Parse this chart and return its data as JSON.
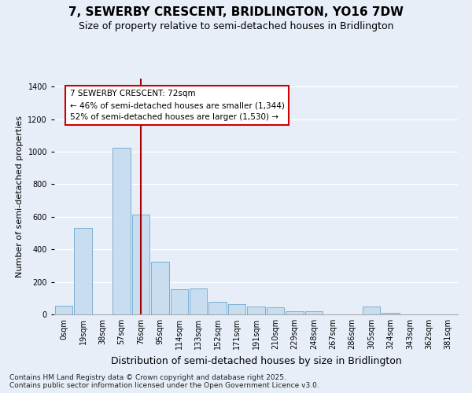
{
  "title_line1": "7, SEWERBY CRESCENT, BRIDLINGTON, YO16 7DW",
  "title_line2": "Size of property relative to semi-detached houses in Bridlington",
  "xlabel": "Distribution of semi-detached houses by size in Bridlington",
  "ylabel": "Number of semi-detached properties",
  "bin_labels": [
    "0sqm",
    "19sqm",
    "38sqm",
    "57sqm",
    "76sqm",
    "95sqm",
    "114sqm",
    "133sqm",
    "152sqm",
    "171sqm",
    "191sqm",
    "210sqm",
    "229sqm",
    "248sqm",
    "267sqm",
    "286sqm",
    "305sqm",
    "324sqm",
    "343sqm",
    "362sqm",
    "381sqm"
  ],
  "bar_values": [
    55,
    530,
    0,
    1025,
    615,
    325,
    155,
    160,
    75,
    65,
    50,
    45,
    20,
    20,
    0,
    0,
    50,
    10,
    0,
    0,
    0
  ],
  "bar_color": "#c8ddf0",
  "bar_edge_color": "#7bafd4",
  "vline_x": 4.0,
  "vline_color": "#aa0000",
  "annotation_text": "7 SEWERBY CRESCENT: 72sqm\n← 46% of semi-detached houses are smaller (1,344)\n52% of semi-detached houses are larger (1,530) →",
  "annotation_box_facecolor": "#ffffff",
  "annotation_box_edgecolor": "#cc0000",
  "ylim": [
    0,
    1450
  ],
  "yticks": [
    0,
    200,
    400,
    600,
    800,
    1000,
    1200,
    1400
  ],
  "bg_color": "#e8eef8",
  "plot_bg_color": "#e8eef8",
  "footer_text": "Contains HM Land Registry data © Crown copyright and database right 2025.\nContains public sector information licensed under the Open Government Licence v3.0.",
  "title_fontsize": 11,
  "subtitle_fontsize": 9,
  "tick_fontsize": 7,
  "xlabel_fontsize": 9,
  "ylabel_fontsize": 8,
  "annotation_fontsize": 7.5,
  "footer_fontsize": 6.5
}
